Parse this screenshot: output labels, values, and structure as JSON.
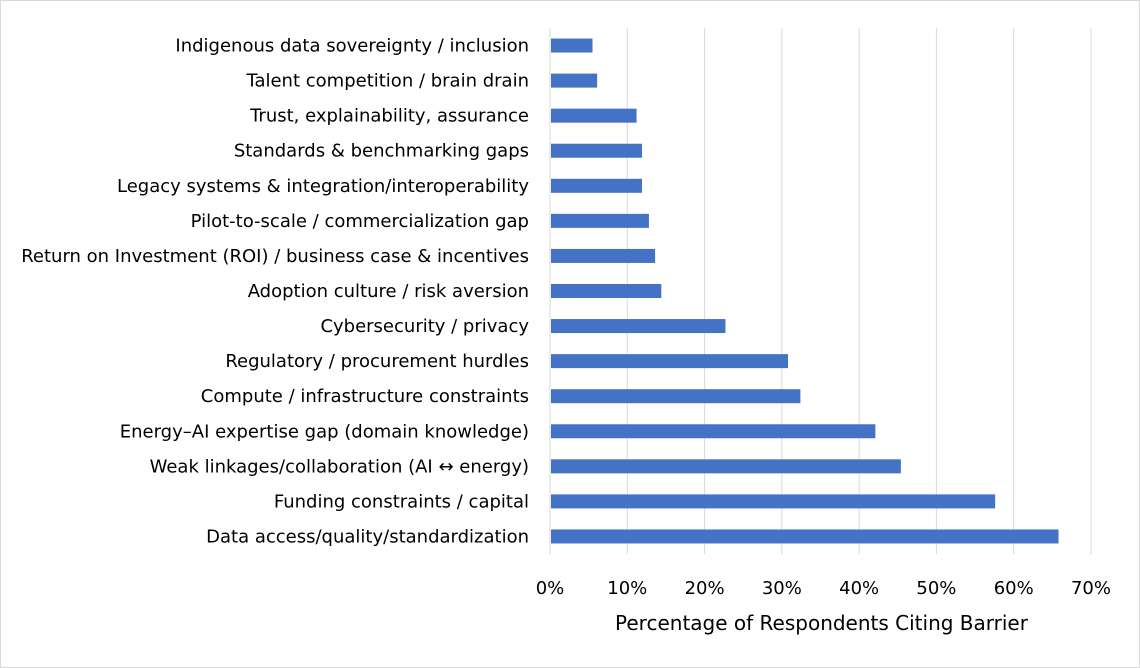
{
  "chart_data": {
    "type": "bar",
    "orientation": "horizontal",
    "categories": [
      "Indigenous data sovereignty / inclusion",
      "Talent competition / brain drain",
      "Trust, explainability, assurance",
      "Standards & benchmarking gaps",
      "Legacy systems & integration/interoperability",
      "Pilot-to-scale / commercialization gap",
      "Return on Investment (ROI) / business case & incentives",
      "Adoption culture / risk aversion",
      "Cybersecurity / privacy",
      "Regulatory / procurement hurdles",
      "Compute / infrastructure constraints",
      "Energy–AI expertise gap (domain knowledge)",
      "Weak linkages/collaboration (AI ↔ energy)",
      "Funding constraints / capital",
      "Data access/quality/standardization"
    ],
    "values": [
      5.5,
      6.1,
      11.2,
      11.9,
      11.9,
      12.8,
      13.6,
      14.4,
      22.7,
      30.8,
      32.4,
      42.1,
      45.4,
      57.6,
      65.8
    ],
    "xlim": [
      0,
      70
    ],
    "xticks": [
      "0%",
      "10%",
      "20%",
      "30%",
      "40%",
      "50%",
      "60%",
      "70%"
    ],
    "xlabel": "Percentage of Respondents Citing Barrier",
    "ylabel": "",
    "title": "",
    "grid": "vertical",
    "bar_color": "#4472c4",
    "grid_color": "#d9d9d9"
  }
}
